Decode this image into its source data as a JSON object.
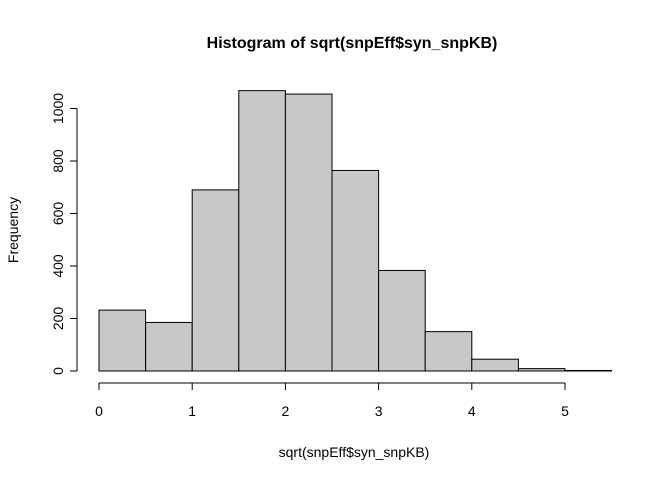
{
  "chart_data": {
    "type": "bar",
    "title": "Histogram of sqrt(snpEff$syn_snpKB)",
    "xlabel": "sqrt(snpEff$syn_snpKB)",
    "ylabel": "Frequency",
    "bins": [
      {
        "x0": 0.0,
        "x1": 0.5,
        "count": 232
      },
      {
        "x0": 0.5,
        "x1": 1.0,
        "count": 185
      },
      {
        "x0": 1.0,
        "x1": 1.5,
        "count": 690
      },
      {
        "x0": 1.5,
        "x1": 2.0,
        "count": 1068
      },
      {
        "x0": 2.0,
        "x1": 2.5,
        "count": 1055
      },
      {
        "x0": 2.5,
        "x1": 3.0,
        "count": 764
      },
      {
        "x0": 3.0,
        "x1": 3.5,
        "count": 383
      },
      {
        "x0": 3.5,
        "x1": 4.0,
        "count": 150
      },
      {
        "x0": 4.0,
        "x1": 4.5,
        "count": 45
      },
      {
        "x0": 4.5,
        "x1": 5.0,
        "count": 9
      },
      {
        "x0": 5.0,
        "x1": 5.5,
        "count": 2
      }
    ],
    "xlim": [
      0,
      5.5
    ],
    "ylim": [
      0,
      1100
    ],
    "x_ticks": [
      0,
      1,
      2,
      3,
      4,
      5
    ],
    "y_ticks": [
      0,
      200,
      400,
      600,
      800,
      1000
    ],
    "grid": false,
    "bar_color": "#c8c8c8",
    "edge_color": "#000000"
  }
}
